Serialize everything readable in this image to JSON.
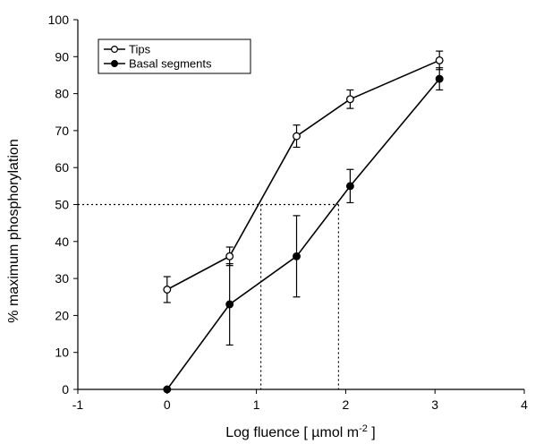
{
  "chart_data": {
    "type": "line",
    "xlabel_main": "Log fluence [ µmol m",
    "xlabel_sup": "-2",
    "xlabel_end": " ]",
    "ylabel": "% maximum phosphorylation",
    "xlim": [
      -1,
      4
    ],
    "ylim": [
      0,
      100
    ],
    "xticks": [
      -1,
      0,
      1,
      2,
      3,
      4
    ],
    "yticks": [
      0,
      10,
      20,
      30,
      40,
      50,
      60,
      70,
      80,
      90,
      100
    ],
    "xtick_labels": [
      "-1",
      "0",
      "1",
      "2",
      "3",
      "4"
    ],
    "ytick_labels": [
      "0",
      "10",
      "20",
      "30",
      "40",
      "50",
      "60",
      "70",
      "80",
      "90",
      "100"
    ],
    "grid": false,
    "legend_position": "top-left",
    "series": [
      {
        "name": "Tips",
        "marker": "open-circle",
        "x": [
          0,
          0.7,
          1.45,
          2.05,
          3.05
        ],
        "y": [
          27,
          36,
          68.5,
          78.5,
          89
        ],
        "err": [
          3.5,
          2.5,
          3,
          2.5,
          2.5
        ]
      },
      {
        "name": "Basal segments",
        "marker": "filled-circle",
        "x": [
          0,
          0.7,
          1.45,
          2.05,
          3.05
        ],
        "y": [
          0,
          23,
          36,
          55,
          84
        ],
        "err": [
          0,
          11,
          11,
          4.5,
          3
        ]
      }
    ],
    "reference_lines": {
      "y": 50,
      "x_tips": 1.05,
      "x_basal": 1.92
    }
  }
}
